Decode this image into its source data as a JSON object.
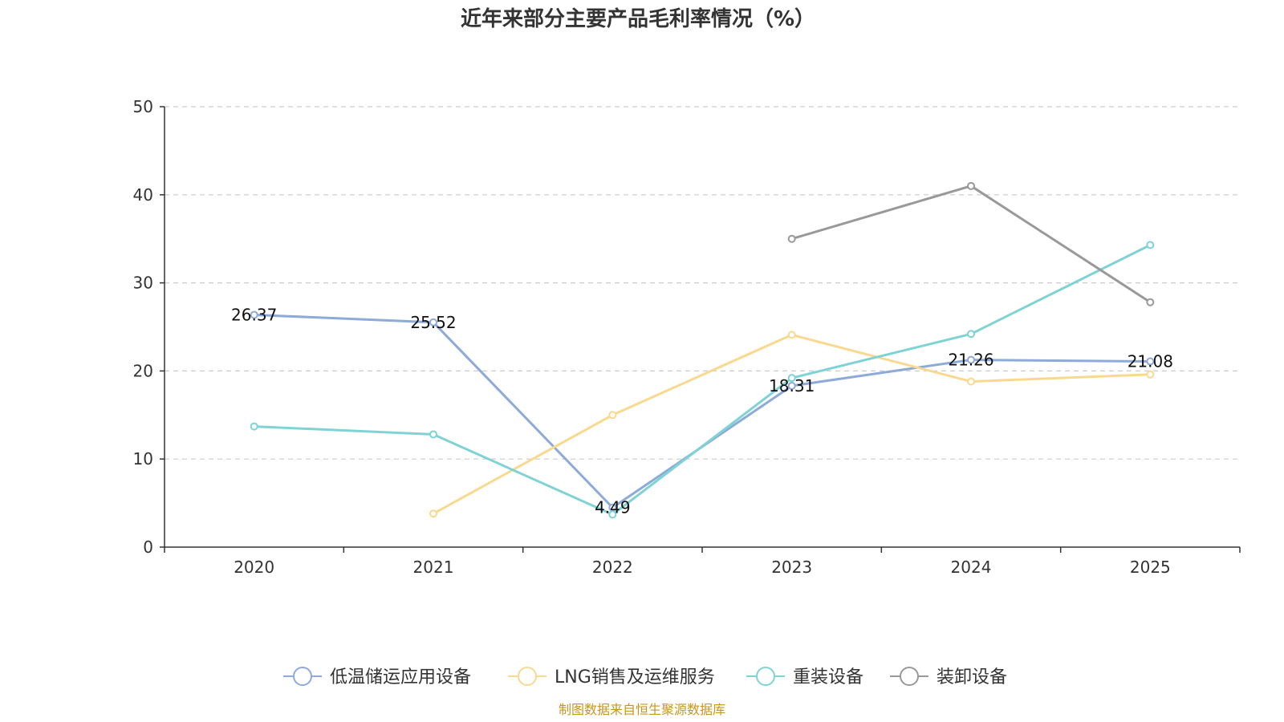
{
  "chart_data": {
    "type": "line",
    "title": "近年来部分主要产品毛利率情况（%）",
    "categories": [
      "2020",
      "2021",
      "2022",
      "2023",
      "2024",
      "2025"
    ],
    "y_ticks": [
      "0",
      "10",
      "20",
      "30",
      "40",
      "50"
    ],
    "ylim": [
      0,
      50
    ],
    "grid": "horizontal dashed",
    "legend_position": "bottom",
    "series": [
      {
        "name": "低温储运应用设备",
        "color": "#8eaad8",
        "values": [
          26.37,
          25.52,
          4.49,
          18.31,
          21.26,
          21.08
        ],
        "labels": [
          "26.37",
          "25.52",
          "4.49",
          "18.31",
          "21.26",
          "21.08"
        ]
      },
      {
        "name": "LNG销售及运维服务",
        "color": "#f9d98f",
        "values": [
          null,
          3.8,
          15.0,
          24.1,
          18.8,
          19.6
        ]
      },
      {
        "name": "重装设备",
        "color": "#7fd3d5",
        "values": [
          13.7,
          12.8,
          3.7,
          19.2,
          24.2,
          34.3
        ]
      },
      {
        "name": "装卸设备",
        "color": "#999999",
        "values": [
          null,
          null,
          null,
          35.0,
          41.0,
          27.8
        ]
      }
    ],
    "source": "制图数据来自恒生聚源数据库"
  }
}
